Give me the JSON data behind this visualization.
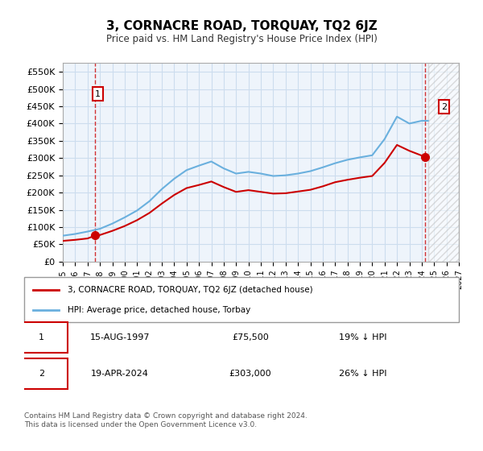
{
  "title": "3, CORNACRE ROAD, TORQUAY, TQ2 6JZ",
  "subtitle": "Price paid vs. HM Land Registry's House Price Index (HPI)",
  "ylim": [
    0,
    575000
  ],
  "yticks": [
    0,
    50000,
    100000,
    150000,
    200000,
    250000,
    300000,
    350000,
    400000,
    450000,
    500000,
    550000
  ],
  "ytick_labels": [
    "£0",
    "£50K",
    "£100K",
    "£150K",
    "£200K",
    "£250K",
    "£300K",
    "£350K",
    "£400K",
    "£450K",
    "£500K",
    "£550K"
  ],
  "xmin_year": 1995,
  "xmax_year": 2027,
  "xticks": [
    1995,
    1996,
    1997,
    1998,
    1999,
    2000,
    2001,
    2002,
    2003,
    2004,
    2005,
    2006,
    2007,
    2008,
    2009,
    2010,
    2011,
    2012,
    2013,
    2014,
    2015,
    2016,
    2017,
    2018,
    2019,
    2020,
    2021,
    2022,
    2023,
    2024,
    2025,
    2026,
    2027
  ],
  "hpi_color": "#6ab0de",
  "price_color": "#cc0000",
  "grid_color": "#ccddee",
  "background_color": "#ddeeff",
  "plot_background": "#eef4fb",
  "legend_label_price": "3, CORNACRE ROAD, TORQUAY, TQ2 6JZ (detached house)",
  "legend_label_hpi": "HPI: Average price, detached house, Torbay",
  "sale1_year": 1997.622,
  "sale1_price": 75500,
  "sale1_label": "1",
  "sale1_date": "15-AUG-1997",
  "sale1_hpi_pct": "19% ↓ HPI",
  "sale2_year": 2024.3,
  "sale2_price": 303000,
  "sale2_label": "2",
  "sale2_date": "19-APR-2024",
  "sale2_hpi_pct": "26% ↓ HPI",
  "footnote": "Contains HM Land Registry data © Crown copyright and database right 2024.\nThis data is licensed under the Open Government Licence v3.0.",
  "hatch_color": "#bbbbbb",
  "future_start_year": 2024.5
}
